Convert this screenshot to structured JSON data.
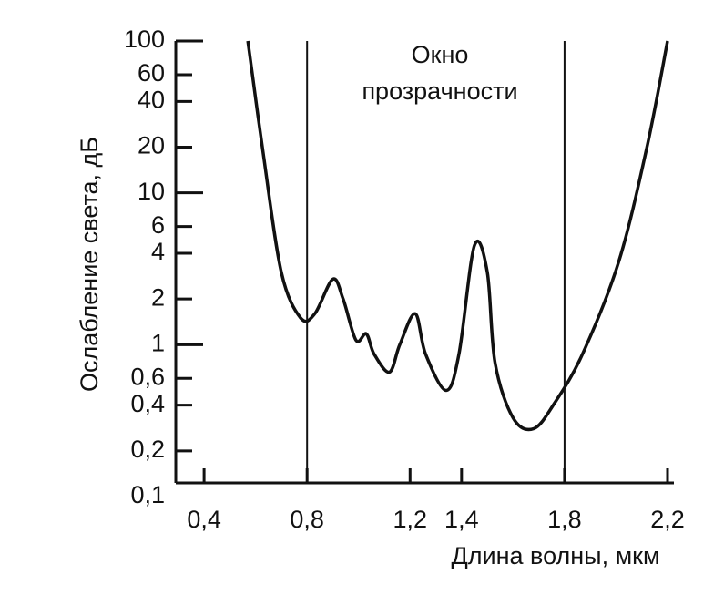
{
  "chart_data": {
    "type": "line",
    "x_label": "Длина волны, мкм",
    "y_label": "Ослабление света, дБ",
    "annotation": [
      "Окно",
      "прозрачности"
    ],
    "y_log": true,
    "xlim": [
      0.29,
      2.2
    ],
    "ylim": [
      0.1,
      100
    ],
    "xticks": [
      {
        "value": 0.4,
        "label": "0,4"
      },
      {
        "value": 0.8,
        "label": "0,8"
      },
      {
        "value": 1.2,
        "label": "1,2"
      },
      {
        "value": 1.4,
        "label": "1,4"
      },
      {
        "value": 1.8,
        "label": "1,8"
      },
      {
        "value": 2.2,
        "label": "2,2"
      }
    ],
    "yticks": [
      100,
      60,
      40,
      20,
      10,
      6,
      4,
      2,
      1,
      {
        "value": 0.6,
        "label": "0,6"
      },
      {
        "value": 0.4,
        "label": "0,4"
      },
      {
        "value": 0.2,
        "label": "0,2"
      },
      {
        "value": 0.1,
        "label": "0,1"
      }
    ],
    "vlines": [
      0.8,
      1.8
    ],
    "series": [
      {
        "color": "#111111",
        "x": [
          0.57,
          0.63,
          0.7,
          0.775,
          0.83,
          0.9,
          0.94,
          0.99,
          1.03,
          1.06,
          1.12,
          1.16,
          1.22,
          1.26,
          1.34,
          1.39,
          1.45,
          1.5,
          1.53,
          1.6,
          1.68,
          1.76,
          1.87,
          2.01,
          2.12,
          2.2
        ],
        "values": [
          100,
          18,
          3.0,
          1.5,
          1.6,
          2.7,
          2.0,
          1.07,
          1.18,
          0.87,
          0.66,
          1.0,
          1.6,
          0.87,
          0.5,
          0.87,
          4.5,
          3.0,
          0.76,
          0.33,
          0.28,
          0.41,
          0.87,
          3.5,
          20,
          100
        ]
      }
    ]
  }
}
